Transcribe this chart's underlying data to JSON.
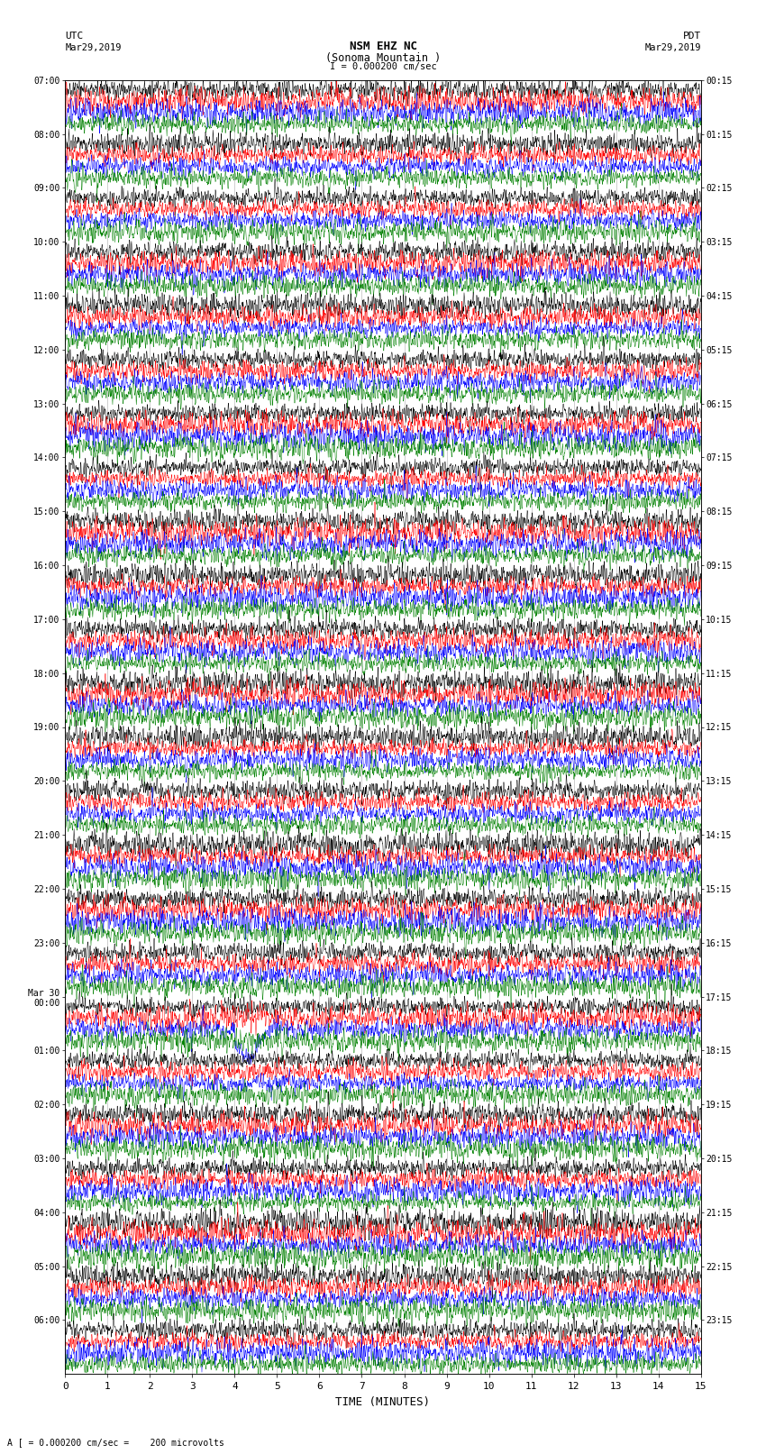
{
  "title_line1": "NSM EHZ NC",
  "title_line2": "(Sonoma Mountain )",
  "scale_label": "I = 0.000200 cm/sec",
  "left_label": "UTC",
  "left_date": "Mar29,2019",
  "right_label": "PDT",
  "right_date": "Mar29,2019",
  "bottom_label": "TIME (MINUTES)",
  "bottom_note": "A [ = 0.000200 cm/sec =    200 microvolts",
  "trace_colors": [
    "black",
    "red",
    "blue",
    "green"
  ],
  "x_min": 0,
  "x_max": 15,
  "x_ticks": [
    0,
    1,
    2,
    3,
    4,
    5,
    6,
    7,
    8,
    9,
    10,
    11,
    12,
    13,
    14,
    15
  ],
  "bg_color": "white",
  "fig_width": 8.5,
  "fig_height": 16.13,
  "dpi": 100,
  "utc_labels": [
    "07:00",
    "08:00",
    "09:00",
    "10:00",
    "11:00",
    "12:00",
    "13:00",
    "14:00",
    "15:00",
    "16:00",
    "17:00",
    "18:00",
    "19:00",
    "20:00",
    "21:00",
    "22:00",
    "23:00",
    "Mar 30\n00:00",
    "01:00",
    "02:00",
    "03:00",
    "04:00",
    "05:00",
    "06:00"
  ],
  "pdt_labels": [
    "00:15",
    "01:15",
    "02:15",
    "03:15",
    "04:15",
    "05:15",
    "06:15",
    "07:15",
    "08:15",
    "09:15",
    "10:15",
    "11:15",
    "12:15",
    "13:15",
    "14:15",
    "15:15",
    "16:15",
    "17:15",
    "18:15",
    "19:15",
    "20:15",
    "21:15",
    "22:15",
    "23:15"
  ],
  "earthquake_row": 17,
  "earthquake_trace": 1,
  "earthquake_minute": 4.3,
  "earthquake_amp": 1.8,
  "eq_black_row": 17,
  "eq_black_minute": 4.2
}
